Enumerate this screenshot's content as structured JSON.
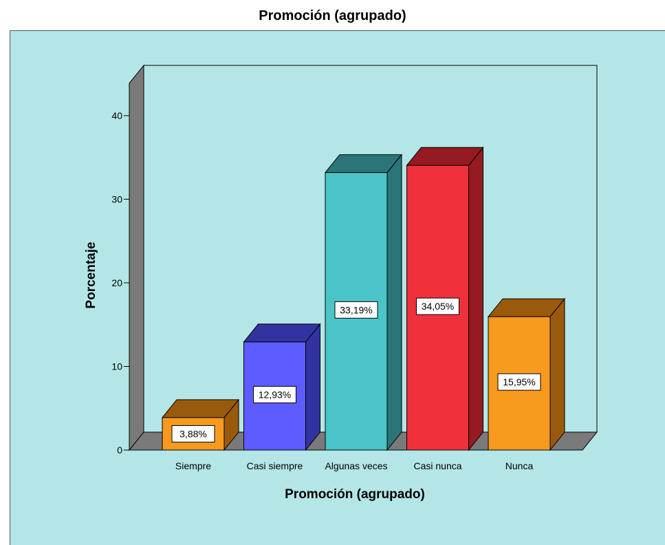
{
  "chart_data": {
    "type": "bar",
    "title": "Promoción (agrupado)",
    "xlabel": "Promoción (agrupado)",
    "ylabel": "Porcentaje",
    "categories": [
      "Siempre",
      "Casi siempre",
      "Algunas veces",
      "Casi nunca",
      "Nunca"
    ],
    "values": [
      3.88,
      12.93,
      33.19,
      34.05,
      15.95
    ],
    "data_labels": [
      "3,88%",
      "12,93%",
      "33,19%",
      "34,05%",
      "15,95%"
    ],
    "yticks": [
      0,
      10,
      20,
      30,
      40
    ],
    "ylim": [
      0,
      44
    ],
    "style": "3d-bar",
    "grid": false,
    "legend": "none",
    "colors": {
      "background": "#b4e6e7",
      "walls": "#7a7a7a",
      "bars": [
        {
          "front": "#f79a1e",
          "side": "#9a5a0c",
          "top": "#9a5a0c"
        },
        {
          "front": "#5c5cff",
          "side": "#3232a0",
          "top": "#3232a0"
        },
        {
          "front": "#4bc4c8",
          "side": "#2a7577",
          "top": "#2a7577"
        },
        {
          "front": "#ef313b",
          "side": "#951a21",
          "top": "#951a21"
        },
        {
          "front": "#f79a1e",
          "side": "#9a5a0c",
          "top": "#9a5a0c"
        }
      ]
    }
  }
}
